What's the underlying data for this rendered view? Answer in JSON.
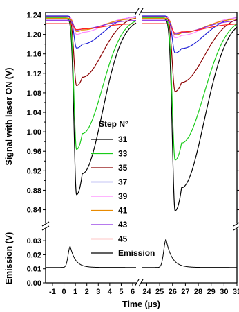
{
  "chart_data": {
    "type": "line",
    "xlabel": "Time (µs)",
    "x_ticks_left": [
      "-1",
      "0",
      "1",
      "2",
      "3",
      "4",
      "5",
      "6"
    ],
    "x_ticks_right": [
      "24",
      "25",
      "26",
      "27",
      "28",
      "29",
      "30",
      "31"
    ],
    "x_range_left": [
      -1.6,
      6.3
    ],
    "x_range_right": [
      23.6,
      31.0
    ],
    "top_panel": {
      "ylabel": "Signal with laser ON (V)",
      "ylim": [
        0.818,
        1.245
      ],
      "y_ticks": [
        "0.84",
        "0.88",
        "0.92",
        "0.96",
        "1.00",
        "1.04",
        "1.08",
        "1.12",
        "1.16",
        "1.20",
        "1.24"
      ]
    },
    "bottom_panel": {
      "ylabel": "Emission (V)",
      "ylim": [
        0.0,
        0.035
      ],
      "y_ticks": [
        "0.00",
        "0.01",
        "0.02",
        "0.03"
      ]
    },
    "legend_title": "Step N°",
    "series": [
      {
        "name": "31",
        "color": "#000000",
        "baseline": 1.232,
        "min_pulse1": 0.871,
        "min_pulse2": 0.838
      },
      {
        "name": "33",
        "color": "#19cc19",
        "baseline": 1.234,
        "min_pulse1": 0.964,
        "min_pulse2": 0.942
      },
      {
        "name": "35",
        "color": "#8b0000",
        "baseline": 1.237,
        "min_pulse1": 1.095,
        "min_pulse2": 1.083
      },
      {
        "name": "37",
        "color": "#1f1fd6",
        "baseline": 1.238,
        "min_pulse1": 1.172,
        "min_pulse2": 1.162
      },
      {
        "name": "39",
        "color": "#ff88ff",
        "baseline": 1.236,
        "min_pulse1": 1.2,
        "min_pulse2": 1.193
      },
      {
        "name": "41",
        "color": "#e88a00",
        "baseline": 1.233,
        "min_pulse1": 1.206,
        "min_pulse2": 1.199
      },
      {
        "name": "43",
        "color": "#8a2be2",
        "baseline": 1.229,
        "min_pulse1": 1.209,
        "min_pulse2": 1.201
      },
      {
        "name": "45",
        "color": "#ff2020",
        "baseline": 1.222,
        "min_pulse1": 1.21,
        "min_pulse2": 1.203
      }
    ],
    "emission": {
      "name": "Emission",
      "color": "#000000",
      "baseline": 0.011,
      "peak_pulse1": 0.026,
      "peak_pulse2": 0.031
    },
    "grid": false,
    "legend_position": "center"
  }
}
